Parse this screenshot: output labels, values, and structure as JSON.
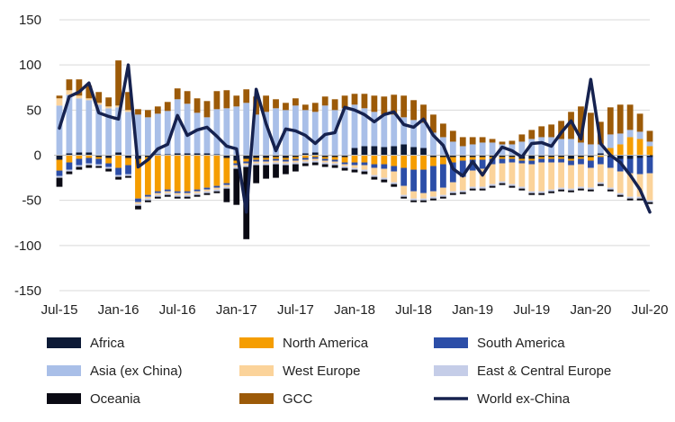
{
  "chart_data": {
    "type": "bar",
    "stacked": true,
    "ylim": [
      -150,
      150
    ],
    "yticks": [
      -150,
      -100,
      -50,
      0,
      50,
      100,
      150
    ],
    "grid": true,
    "legend_position": "bottom",
    "x": [
      "Jul-15",
      "Aug-15",
      "Sep-15",
      "Oct-15",
      "Nov-15",
      "Dec-15",
      "Jan-16",
      "Feb-16",
      "Mar-16",
      "Apr-16",
      "May-16",
      "Jun-16",
      "Jul-16",
      "Aug-16",
      "Sep-16",
      "Oct-16",
      "Nov-16",
      "Dec-16",
      "Jan-17",
      "Feb-17",
      "Mar-17",
      "Apr-17",
      "May-17",
      "Jun-17",
      "Jul-17",
      "Aug-17",
      "Sep-17",
      "Oct-17",
      "Nov-17",
      "Dec-17",
      "Jan-18",
      "Feb-18",
      "Mar-18",
      "Apr-18",
      "May-18",
      "Jun-18",
      "Jul-18",
      "Aug-18",
      "Sep-18",
      "Oct-18",
      "Nov-18",
      "Dec-18",
      "Jan-19",
      "Feb-19",
      "Mar-19",
      "Apr-19",
      "May-19",
      "Jun-19",
      "Jul-19",
      "Aug-19",
      "Sep-19",
      "Oct-19",
      "Nov-19",
      "Dec-19",
      "Jan-20",
      "Feb-20",
      "Mar-20",
      "Apr-20",
      "May-20",
      "Jun-20",
      "Jul-20"
    ],
    "xtick_labels": [
      "Jul-15",
      "Jan-16",
      "Jul-16",
      "Jan-17",
      "Jul-17",
      "Jan-18",
      "Jul-18",
      "Jan-19",
      "Jul-19",
      "Jan-20",
      "Jul-20"
    ],
    "series": [
      {
        "name": "Africa",
        "color": "#0d1a36",
        "values": [
          -5,
          2,
          3,
          3,
          -2,
          -3,
          3,
          -3,
          -4,
          -2,
          1,
          1,
          2,
          2,
          2,
          2,
          1,
          -3,
          -6,
          -4,
          -3,
          -3,
          -2,
          -3,
          -2,
          2,
          3,
          -2,
          -2,
          -2,
          8,
          10,
          10,
          9,
          10,
          12,
          9,
          8,
          -2,
          -2,
          -2,
          -2,
          -2,
          -2,
          -2,
          -2,
          -2,
          -4,
          -4,
          -2,
          -2,
          -2,
          -4,
          -2,
          -2,
          2,
          -2,
          -4,
          -4,
          -3,
          -2
        ]
      },
      {
        "name": "North America",
        "color": "#f59d00",
        "values": [
          -12,
          -8,
          -4,
          -3,
          -2,
          -6,
          -14,
          -8,
          -44,
          -42,
          -40,
          -38,
          -40,
          -40,
          -38,
          -36,
          -34,
          -28,
          -3,
          -3,
          -2,
          -2,
          -2,
          -2,
          -2,
          -3,
          -2,
          -2,
          -3,
          -6,
          -8,
          -8,
          -10,
          -10,
          -12,
          -14,
          -16,
          -16,
          -10,
          -8,
          -6,
          -4,
          -3,
          -3,
          -2,
          -2,
          -2,
          -2,
          -2,
          -2,
          -2,
          -2,
          -2,
          -2,
          -4,
          -2,
          8,
          12,
          20,
          18,
          10
        ]
      },
      {
        "name": "South America",
        "color": "#2c4ea8",
        "values": [
          -6,
          -8,
          -7,
          -6,
          -6,
          -4,
          -8,
          -10,
          -4,
          -2,
          -2,
          -2,
          -2,
          -2,
          -2,
          -2,
          -2,
          -2,
          -2,
          -2,
          -2,
          -2,
          -2,
          -2,
          -2,
          -2,
          -2,
          -2,
          -2,
          -2,
          -3,
          -3,
          -4,
          -5,
          -6,
          -20,
          -24,
          -26,
          -28,
          -26,
          -22,
          -18,
          -12,
          -10,
          -6,
          -5,
          -4,
          -3,
          -4,
          -4,
          -4,
          -4,
          -5,
          -6,
          -8,
          -8,
          -12,
          -14,
          -16,
          -18,
          -18
        ]
      },
      {
        "name": "Asia (ex China)",
        "color": "#a9bfe8",
        "values": [
          55,
          65,
          60,
          58,
          56,
          52,
          50,
          48,
          45,
          42,
          45,
          48,
          60,
          55,
          45,
          40,
          50,
          52,
          54,
          58,
          45,
          48,
          52,
          50,
          55,
          48,
          45,
          55,
          50,
          52,
          48,
          42,
          38,
          36,
          35,
          30,
          30,
          28,
          25,
          20,
          15,
          10,
          12,
          14,
          14,
          12,
          12,
          15,
          18,
          20,
          20,
          18,
          18,
          14,
          12,
          10,
          15,
          12,
          8,
          8,
          5
        ]
      },
      {
        "name": "West Europe",
        "color": "#fbd39a",
        "values": [
          8,
          5,
          3,
          2,
          2,
          2,
          2,
          2,
          -2,
          -2,
          -2,
          -2,
          -2,
          -2,
          -2,
          -2,
          -2,
          -2,
          -2,
          -2,
          -2,
          -2,
          -2,
          -2,
          -2,
          -2,
          -2,
          -2,
          -2,
          -2,
          -3,
          -5,
          -8,
          -10,
          -12,
          -10,
          -8,
          -6,
          -6,
          -8,
          -10,
          -15,
          -18,
          -20,
          -22,
          -20,
          -24,
          -26,
          -30,
          -32,
          -30,
          -28,
          -26,
          -25,
          -22,
          -20,
          -22,
          -24,
          -26,
          -25,
          -30
        ]
      },
      {
        "name": "East & Central Europe",
        "color": "#c5cde8",
        "values": [
          -2,
          -2,
          -2,
          -2,
          -2,
          -2,
          -2,
          -2,
          -2,
          -2,
          -2,
          -2,
          -2,
          -2,
          -2,
          -2,
          -2,
          -2,
          -2,
          -2,
          -2,
          -2,
          -2,
          -2,
          -2,
          -2,
          -2,
          -2,
          -2,
          -2,
          -2,
          -2,
          -2,
          -2,
          -2,
          -2,
          -2,
          -2,
          -2,
          -2,
          -2,
          -2,
          -2,
          -2,
          -2,
          -2,
          -2,
          -2,
          -2,
          -2,
          -2,
          -2,
          -2,
          -2,
          -2,
          -2,
          -2,
          -2,
          -2,
          -2,
          -2
        ]
      },
      {
        "name": "Oceania",
        "color": "#0a0a14",
        "values": [
          -10,
          -3,
          -3,
          -3,
          -2,
          -3,
          -3,
          -2,
          -4,
          -2,
          -2,
          -2,
          -2,
          -2,
          -2,
          -2,
          -2,
          -15,
          -40,
          -80,
          -20,
          -15,
          -15,
          -10,
          -8,
          -3,
          -3,
          -3,
          -3,
          -3,
          -3,
          -3,
          -3,
          -3,
          -3,
          -2,
          -2,
          -2,
          -2,
          -2,
          -2,
          -2,
          -2,
          -2,
          -2,
          -2,
          -2,
          -2,
          -2,
          -2,
          -2,
          -2,
          -2,
          -2,
          -2,
          -2,
          -2,
          -2,
          -2,
          -2,
          -2
        ]
      },
      {
        "name": "GCC",
        "color": "#9c5a08",
        "values": [
          3,
          12,
          18,
          14,
          12,
          10,
          50,
          20,
          6,
          8,
          8,
          10,
          12,
          14,
          16,
          18,
          20,
          20,
          12,
          15,
          20,
          18,
          10,
          8,
          8,
          6,
          10,
          10,
          12,
          14,
          12,
          16,
          18,
          20,
          22,
          24,
          22,
          20,
          20,
          15,
          12,
          10,
          8,
          6,
          4,
          3,
          4,
          8,
          10,
          12,
          14,
          20,
          30,
          40,
          35,
          25,
          30,
          32,
          28,
          20,
          12
        ]
      },
      {
        "name": "World ex-China",
        "color": "#16224f",
        "type": "line",
        "values": [
          30,
          65,
          70,
          80,
          47,
          43,
          40,
          100,
          -13,
          -5,
          7,
          12,
          44,
          22,
          28,
          31,
          21,
          10,
          7,
          -63,
          73,
          35,
          5,
          29,
          27,
          22,
          13,
          23,
          25,
          53,
          50,
          45,
          37,
          45,
          48,
          34,
          31,
          40,
          22,
          11,
          -15,
          -23,
          -7,
          -22,
          -5,
          9,
          5,
          -2,
          13,
          14,
          10,
          25,
          38,
          18,
          84,
          13,
          0,
          -8,
          -22,
          -38,
          -63
        ]
      }
    ]
  }
}
